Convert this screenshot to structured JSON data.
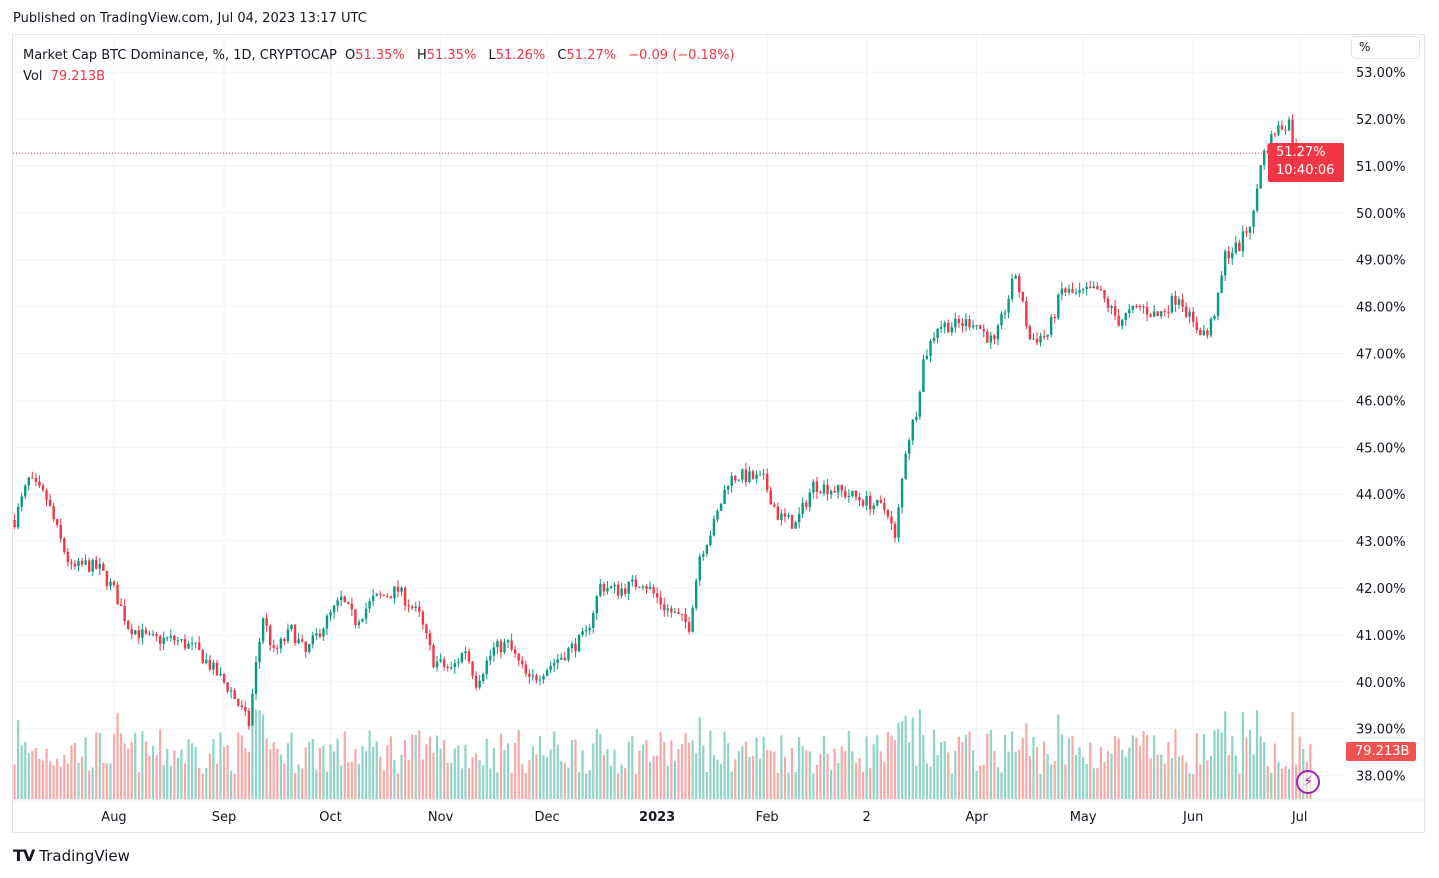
{
  "published": "Published on TradingView.com, Jul 04, 2023 13:17 UTC",
  "legend": {
    "symbol": "Market Cap BTC Dominance, %, 1D, CRYPTOCAP",
    "o_label": "O",
    "o": "51.35%",
    "h_label": "H",
    "h": "51.35%",
    "l_label": "L",
    "l": "51.26%",
    "c_label": "C",
    "c": "51.27%",
    "change": "−0.09 (−0.18%)",
    "vol_label": "Vol",
    "vol": "79.213B"
  },
  "scale_unit": "%",
  "last_price_tag": {
    "price": "51.27%",
    "countdown": "10:40:06"
  },
  "volume_tag": "79.213B",
  "logo_text": "TradingView",
  "colors": {
    "up": "#089981",
    "down": "#f23645",
    "vol_up": "#8fd3c7",
    "vol_down": "#f7a9a7",
    "grid": "#f0f3fa",
    "accent": "#9c27b0"
  },
  "chart_data": {
    "type": "candlestick",
    "title": "Market Cap BTC Dominance, %, 1D, CRYPTOCAP",
    "ylim": [
      38,
      53
    ],
    "y_ticks": [
      "53.00%",
      "52.00%",
      "51.00%",
      "50.00%",
      "49.00%",
      "48.00%",
      "47.00%",
      "46.00%",
      "45.00%",
      "44.00%",
      "43.00%",
      "42.00%",
      "41.00%",
      "40.00%",
      "39.00%",
      "38.00%"
    ],
    "x_ticks": [
      {
        "label": "Aug",
        "date": "2022-08-01"
      },
      {
        "label": "Sep",
        "date": "2022-09-01"
      },
      {
        "label": "Oct",
        "date": "2022-10-01"
      },
      {
        "label": "Nov",
        "date": "2022-11-01"
      },
      {
        "label": "Dec",
        "date": "2022-12-01"
      },
      {
        "label": "2023",
        "date": "2023-01-01",
        "bold": true
      },
      {
        "label": "Feb",
        "date": "2023-02-01"
      },
      {
        "label": "2",
        "date": "2023-03-01"
      },
      {
        "label": "Apr",
        "date": "2023-04-01"
      },
      {
        "label": "May",
        "date": "2023-05-01"
      },
      {
        "label": "Jun",
        "date": "2023-06-01"
      },
      {
        "label": "Jul",
        "date": "2023-07-01"
      }
    ],
    "grid": true,
    "close_approx": [
      [
        "2022-07-04",
        43.45
      ],
      [
        "2022-07-08",
        44.3
      ],
      [
        "2022-07-13",
        43.9
      ],
      [
        "2022-07-17",
        43.0
      ],
      [
        "2022-07-20",
        42.4
      ],
      [
        "2022-07-24",
        42.5
      ],
      [
        "2022-07-28",
        42.4
      ],
      [
        "2022-08-01",
        41.95
      ],
      [
        "2022-08-05",
        41.2
      ],
      [
        "2022-08-11",
        40.9
      ],
      [
        "2022-08-18",
        40.9
      ],
      [
        "2022-08-24",
        40.7
      ],
      [
        "2022-08-28",
        40.35
      ],
      [
        "2022-09-03",
        39.8
      ],
      [
        "2022-09-08",
        39.1
      ],
      [
        "2022-09-10",
        40.35
      ],
      [
        "2022-09-12",
        41.4
      ],
      [
        "2022-09-15",
        40.6
      ],
      [
        "2022-09-20",
        41.1
      ],
      [
        "2022-09-24",
        40.6
      ],
      [
        "2022-09-28",
        41.1
      ],
      [
        "2022-10-04",
        41.75
      ],
      [
        "2022-10-08",
        41.3
      ],
      [
        "2022-10-13",
        41.75
      ],
      [
        "2022-10-20",
        41.95
      ],
      [
        "2022-10-26",
        41.4
      ],
      [
        "2022-10-30",
        40.45
      ],
      [
        "2022-11-04",
        40.25
      ],
      [
        "2022-11-08",
        40.7
      ],
      [
        "2022-11-11",
        40.0
      ],
      [
        "2022-11-16",
        40.7
      ],
      [
        "2022-11-20",
        40.8
      ],
      [
        "2022-11-26",
        40.0
      ],
      [
        "2022-11-30",
        40.25
      ],
      [
        "2022-12-06",
        40.6
      ],
      [
        "2022-12-12",
        41.0
      ],
      [
        "2022-12-16",
        42.05
      ],
      [
        "2022-12-21",
        41.95
      ],
      [
        "2022-12-28",
        42.15
      ],
      [
        "2023-01-03",
        41.6
      ],
      [
        "2023-01-10",
        41.2
      ],
      [
        "2023-01-13",
        42.7
      ],
      [
        "2023-01-17",
        43.35
      ],
      [
        "2023-01-21",
        44.3
      ],
      [
        "2023-01-24",
        44.4
      ],
      [
        "2023-01-31",
        44.3
      ],
      [
        "2023-02-04",
        43.55
      ],
      [
        "2023-02-09",
        43.35
      ],
      [
        "2023-02-14",
        44.2
      ],
      [
        "2023-02-20",
        44.1
      ],
      [
        "2023-02-27",
        43.9
      ],
      [
        "2023-03-07",
        43.65
      ],
      [
        "2023-03-09",
        43.0
      ],
      [
        "2023-03-12",
        44.95
      ],
      [
        "2023-03-15",
        45.8
      ],
      [
        "2023-03-17",
        46.85
      ],
      [
        "2023-03-21",
        47.6
      ],
      [
        "2023-03-26",
        47.6
      ],
      [
        "2023-03-31",
        47.7
      ],
      [
        "2023-04-06",
        47.2
      ],
      [
        "2023-04-12",
        48.7
      ],
      [
        "2023-04-16",
        47.3
      ],
      [
        "2023-04-21",
        47.4
      ],
      [
        "2023-04-25",
        48.35
      ],
      [
        "2023-04-29",
        48.25
      ],
      [
        "2023-05-05",
        48.35
      ],
      [
        "2023-05-11",
        47.7
      ],
      [
        "2023-05-17",
        48.0
      ],
      [
        "2023-05-22",
        47.8
      ],
      [
        "2023-05-28",
        48.25
      ],
      [
        "2023-06-01",
        47.6
      ],
      [
        "2023-06-05",
        47.4
      ],
      [
        "2023-06-08",
        48.15
      ],
      [
        "2023-06-10",
        49.1
      ],
      [
        "2023-06-14",
        49.3
      ],
      [
        "2023-06-18",
        49.95
      ],
      [
        "2023-06-20",
        51.1
      ],
      [
        "2023-06-24",
        51.75
      ],
      [
        "2023-06-28",
        51.95
      ],
      [
        "2023-06-30",
        51.2
      ],
      [
        "2023-07-04",
        51.27
      ]
    ],
    "last": {
      "open": 51.35,
      "high": 51.35,
      "low": 51.26,
      "close": 51.27,
      "volume": "79.213B"
    }
  }
}
